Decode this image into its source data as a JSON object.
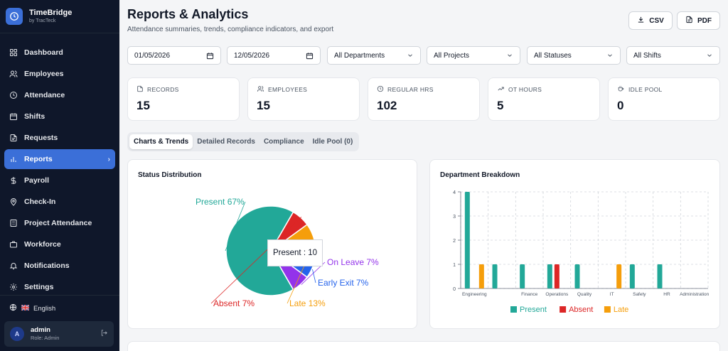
{
  "app": {
    "name": "TimeBridge",
    "by": "by TracTeck"
  },
  "sidebar": {
    "items": [
      {
        "label": "Dashboard",
        "icon": "grid-icon"
      },
      {
        "label": "Employees",
        "icon": "users-icon"
      },
      {
        "label": "Attendance",
        "icon": "clock-icon"
      },
      {
        "label": "Shifts",
        "icon": "calendar-icon"
      },
      {
        "label": "Requests",
        "icon": "file-icon"
      },
      {
        "label": "Reports",
        "icon": "bar-chart-icon",
        "active": true
      },
      {
        "label": "Payroll",
        "icon": "dollar-icon"
      },
      {
        "label": "Check-In",
        "icon": "map-pin-icon"
      },
      {
        "label": "Project Attendance",
        "icon": "building-icon"
      },
      {
        "label": "Workforce",
        "icon": "briefcase-icon"
      },
      {
        "label": "Notifications",
        "icon": "bell-icon"
      },
      {
        "label": "Settings",
        "icon": "gear-icon"
      }
    ],
    "language": "English",
    "user": {
      "initial": "A",
      "name": "admin",
      "role": "Role: Admin"
    }
  },
  "header": {
    "title": "Reports & Analytics",
    "subtitle": "Attendance summaries, trends, compliance indicators, and export",
    "csv_label": "CSV",
    "pdf_label": "PDF"
  },
  "filters": {
    "date_from": "01/05/2026",
    "date_to": "12/05/2026",
    "department": "All Departments",
    "project": "All Projects",
    "status": "All Statuses",
    "shift": "All Shifts"
  },
  "stats": [
    {
      "label": "RECORDS",
      "value": "15",
      "icon": "file-icon"
    },
    {
      "label": "EMPLOYEES",
      "value": "15",
      "icon": "users-icon"
    },
    {
      "label": "REGULAR HRS",
      "value": "102",
      "icon": "clock-icon"
    },
    {
      "label": "OT HOURS",
      "value": "5",
      "icon": "trending-up-icon"
    },
    {
      "label": "IDLE POOL",
      "value": "0",
      "icon": "coffee-icon"
    }
  ],
  "tabs": [
    {
      "label": "Charts & Trends",
      "active": true
    },
    {
      "label": "Detailed Records"
    },
    {
      "label": "Compliance"
    },
    {
      "label": "Idle Pool (0)"
    }
  ],
  "colors": {
    "present": "#22a898",
    "absent": "#dc2626",
    "late": "#f59e0b",
    "on_leave": "#9333ea",
    "early_exit": "#2563eb",
    "accent": "#3b6fd8"
  },
  "chart_data": [
    {
      "type": "pie",
      "title": "Status Distribution",
      "slices": [
        {
          "name": "Present",
          "value": 10,
          "label": "Present 67%"
        },
        {
          "name": "On Leave",
          "value": 1,
          "label": "On Leave 7%"
        },
        {
          "name": "Early Exit",
          "value": 1,
          "label": "Early Exit 7%"
        },
        {
          "name": "Late",
          "value": 2,
          "label": "Late 13%"
        },
        {
          "name": "Absent",
          "value": 1,
          "label": "Absent 7%"
        }
      ],
      "tooltip": "Present : 10"
    },
    {
      "type": "bar",
      "title": "Department Breakdown",
      "categories": [
        "Engineering",
        "",
        "Finance",
        "Operations",
        "Quality",
        "IT",
        "Safety",
        "HR",
        "Administration"
      ],
      "series": [
        {
          "name": "Present",
          "values": [
            4,
            1,
            1,
            1,
            1,
            0,
            1,
            1,
            0
          ]
        },
        {
          "name": "Absent",
          "values": [
            0,
            0,
            0,
            1,
            0,
            0,
            0,
            0,
            0
          ]
        },
        {
          "name": "Late",
          "values": [
            1,
            0,
            0,
            0,
            0,
            1,
            0,
            0,
            0
          ]
        }
      ],
      "y_ticks": [
        "0",
        "1",
        "2",
        "3",
        "4"
      ],
      "ylim": [
        0,
        4
      ],
      "grid": true,
      "legend": "bottom"
    }
  ]
}
